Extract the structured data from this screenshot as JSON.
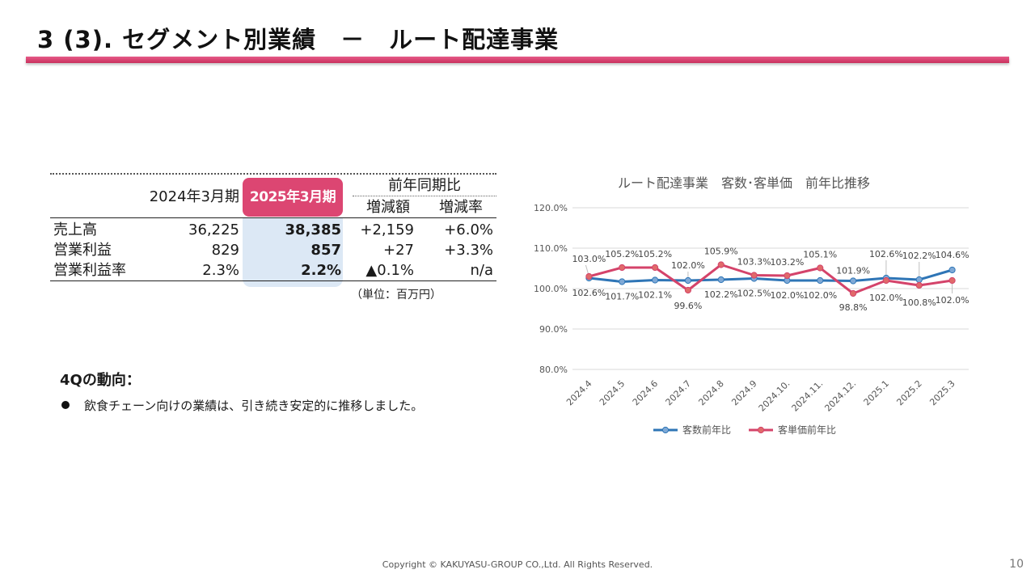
{
  "header": {
    "title": "3 (3).  セグメント別業績　－　ルート配達事業"
  },
  "table": {
    "headers": {
      "prev": "2024年3月期",
      "current": "2025年3月期",
      "yoy": "前年同期比",
      "diff": "増減額",
      "rate": "増減率"
    },
    "rows": [
      {
        "label": "売上高",
        "prev": "36,225",
        "current": "38,385",
        "diff": "+2,159",
        "rate": "+6.0%"
      },
      {
        "label": "営業利益",
        "prev": "829",
        "current": "857",
        "diff": "+27",
        "rate": "+3.3%"
      },
      {
        "label": "営業利益率",
        "prev": "2.3%",
        "current": "2.2%",
        "diff": "▲0.1%",
        "rate": "n/a"
      }
    ],
    "unit": "（単位：百万円）"
  },
  "trend": {
    "title": "4Qの動向：",
    "bullet": "飲食チェーン向けの業績は、引き続き安定的に推移しました。"
  },
  "chart_data": {
    "type": "line",
    "title": "ルート配達事業　客数･客単価　前年比推移",
    "categories": [
      "2024.4",
      "2024.5",
      "2024.6",
      "2024.7",
      "2024.8",
      "2024.9",
      "2024.10.",
      "2024.11.",
      "2024.12.",
      "2025.1",
      "2025.2",
      "2025.3"
    ],
    "series": [
      {
        "name": "客数前年比",
        "color": "#2e75b6",
        "marker_color": "#7fa9d6",
        "values": [
          102.6,
          101.7,
          102.1,
          102.0,
          102.2,
          102.5,
          102.0,
          102.0,
          101.9,
          102.6,
          102.2,
          104.6
        ],
        "labels": [
          "102.6%",
          "101.7%",
          "102.1%",
          "102.0%",
          "102.2%",
          "102.5%",
          "102.0%",
          "102.0%",
          "101.9%",
          "102.6%",
          "102.2%",
          "104.6%"
        ]
      },
      {
        "name": "客単価前年比",
        "color": "#d4436a",
        "marker_color": "#e06a6a",
        "values": [
          103.0,
          105.2,
          105.2,
          99.6,
          105.9,
          103.3,
          103.2,
          105.1,
          98.8,
          102.0,
          100.8,
          102.0
        ],
        "labels": [
          "103.0%",
          "105.2%",
          "105.2%",
          "99.6%",
          "105.9%",
          "103.3%",
          "103.2%",
          "105.1%",
          "98.8%",
          "102.0%",
          "100.8%",
          "102.0%"
        ]
      }
    ],
    "y_ticks": [
      "80.0%",
      "90.0%",
      "100.0%",
      "110.0%",
      "120.0%"
    ],
    "ylim": [
      80,
      120
    ],
    "grid": true,
    "legend_position": "bottom"
  },
  "footer": {
    "copyright": "Copyright © KAKUYASU-GROUP CO.,Ltd. All Rights Reserved.",
    "page": "10"
  }
}
